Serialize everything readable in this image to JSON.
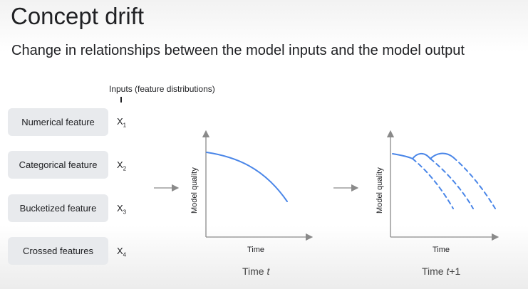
{
  "title": "Concept drift",
  "subtitle": "Change in relationships between the model inputs and the model output",
  "inputs_label": "Inputs (feature distributions)",
  "features": [
    {
      "label": "Numerical feature",
      "var": "X",
      "sub": "1"
    },
    {
      "label": "Categorical feature",
      "var": "X",
      "sub": "2"
    },
    {
      "label": "Bucketized feature",
      "var": "X",
      "sub": "3"
    },
    {
      "label": "Crossed features",
      "var": "X",
      "sub": "4"
    }
  ],
  "charts": [
    {
      "ylabel": "Model quality",
      "xlabel": "Time",
      "caption_prefix": "Time ",
      "caption_var": "t",
      "caption_suffix": ""
    },
    {
      "ylabel": "Model quality",
      "xlabel": "Time",
      "caption_prefix": "Time ",
      "caption_var": "t",
      "caption_suffix": "+1"
    }
  ],
  "colors": {
    "accent": "#4a86e8",
    "box": "#e8eaed"
  }
}
